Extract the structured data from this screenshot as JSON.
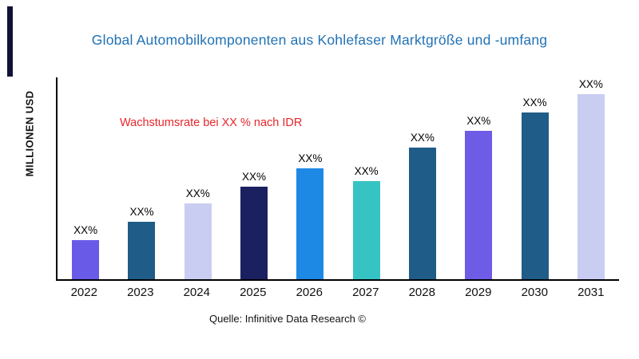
{
  "colors": {
    "title_text": "#2272b4",
    "annotation_text": "#e8262a",
    "axis": "#000000",
    "accent_bar": "#101235"
  },
  "source": "Quelle: Infinitive Data Research ©",
  "chart_data": {
    "type": "bar",
    "title": "Global Automobilkomponenten aus Kohlefaser Marktgröße und -umfang",
    "annotation": "Wachstumsrate bei XX % nach IDR",
    "xlabel": "",
    "ylabel": "MILLIONEN USD",
    "categories": [
      "2022",
      "2023",
      "2024",
      "2025",
      "2026",
      "2027",
      "2028",
      "2029",
      "2030",
      "2031"
    ],
    "values": [
      21,
      31,
      41,
      50,
      60,
      53,
      71,
      80,
      90,
      100
    ],
    "values_note": "relative heights; chart shows placeholder labels only",
    "bar_labels": [
      "XX%",
      "XX%",
      "XX%",
      "XX%",
      "XX%",
      "XX%",
      "XX%",
      "XX%",
      "XX%",
      "XX%"
    ],
    "bar_colors": [
      "#6a5ae8",
      "#1f5c87",
      "#c9cdf1",
      "#1b2060",
      "#1e88e5",
      "#35c4c3",
      "#1f5c87",
      "#6e5be6",
      "#1f5c87",
      "#c9cdf1"
    ],
    "ylim": [
      0,
      100
    ],
    "grid": false,
    "legend": "none"
  }
}
